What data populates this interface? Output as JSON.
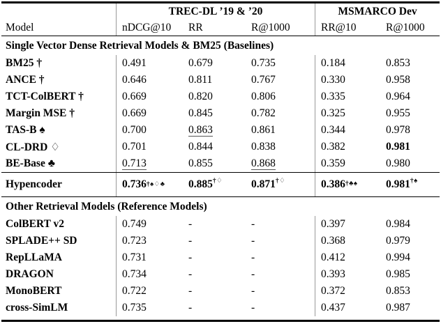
{
  "table": {
    "header": {
      "model": "Model",
      "groups": [
        {
          "label": "TREC-DL ’19 & ’20",
          "cols": [
            "nDCG@10",
            "RR",
            "R@1000"
          ]
        },
        {
          "label": "MSMARCO Dev",
          "cols": [
            "RR@10",
            "R@1000"
          ]
        }
      ]
    },
    "sections": [
      {
        "title": "Single Vector Dense Retrieval Models & BM25 (Baselines)",
        "rows": [
          {
            "model": "BM25 †",
            "cells": [
              {
                "t": "0.491"
              },
              {
                "t": "0.679"
              },
              {
                "t": "0.735"
              },
              {
                "t": "0.184"
              },
              {
                "t": "0.853"
              }
            ]
          },
          {
            "model": "ANCE †",
            "cells": [
              {
                "t": "0.646"
              },
              {
                "t": "0.811"
              },
              {
                "t": "0.767"
              },
              {
                "t": "0.330"
              },
              {
                "t": "0.958"
              }
            ]
          },
          {
            "model": "TCT-ColBERT †",
            "cells": [
              {
                "t": "0.669"
              },
              {
                "t": "0.820"
              },
              {
                "t": "0.806"
              },
              {
                "t": "0.335"
              },
              {
                "t": "0.964"
              }
            ]
          },
          {
            "model": "Margin MSE †",
            "cells": [
              {
                "t": "0.669"
              },
              {
                "t": "0.845"
              },
              {
                "t": "0.782"
              },
              {
                "t": "0.325"
              },
              {
                "t": "0.955"
              }
            ]
          },
          {
            "model": "TAS-B ♠",
            "cells": [
              {
                "t": "0.700"
              },
              {
                "t": "0.863",
                "ul": true
              },
              {
                "t": "0.861"
              },
              {
                "t": "0.344"
              },
              {
                "t": "0.978"
              }
            ]
          },
          {
            "model": "CL-DRD ♢",
            "cells": [
              {
                "t": "0.701"
              },
              {
                "t": "0.844"
              },
              {
                "t": "0.838"
              },
              {
                "t": "0.382"
              },
              {
                "t": "0.981",
                "bold": true
              }
            ]
          },
          {
            "model": "BE-Base ♣",
            "cells": [
              {
                "t": "0.713",
                "ul": true
              },
              {
                "t": "0.855"
              },
              {
                "t": "0.868",
                "ul": true
              },
              {
                "t": "0.359"
              },
              {
                "t": "0.980"
              }
            ]
          }
        ]
      },
      {
        "title": null,
        "highlight": true,
        "rows": [
          {
            "model": "Hypencoder",
            "cells": [
              {
                "t": "0.736",
                "sup": "†♠♢♣",
                "bold": true
              },
              {
                "t": "0.885",
                "sup": "†♢",
                "bold": true
              },
              {
                "t": "0.871",
                "sup": "†♢",
                "bold": true
              },
              {
                "t": "0.386",
                "sup": "†♣♠",
                "bold": true
              },
              {
                "t": "0.981",
                "sup": "†♠",
                "bold": true
              }
            ]
          }
        ]
      },
      {
        "title": "Other Retrieval Models (Reference Models)",
        "rows": [
          {
            "model": "ColBERT v2",
            "cells": [
              {
                "t": "0.749"
              },
              {
                "t": "-"
              },
              {
                "t": "-"
              },
              {
                "t": "0.397"
              },
              {
                "t": "0.984"
              }
            ]
          },
          {
            "model": "SPLADE++ SD",
            "cells": [
              {
                "t": "0.723"
              },
              {
                "t": "-"
              },
              {
                "t": "-"
              },
              {
                "t": "0.368"
              },
              {
                "t": "0.979"
              }
            ]
          },
          {
            "model": "RepLLaMA",
            "cells": [
              {
                "t": "0.731"
              },
              {
                "t": "-"
              },
              {
                "t": "-"
              },
              {
                "t": "0.412"
              },
              {
                "t": "0.994"
              }
            ]
          },
          {
            "model": "DRAGON",
            "cells": [
              {
                "t": "0.734"
              },
              {
                "t": "-"
              },
              {
                "t": "-"
              },
              {
                "t": "0.393"
              },
              {
                "t": "0.985"
              }
            ]
          },
          {
            "model": "MonoBERT",
            "cells": [
              {
                "t": "0.722"
              },
              {
                "t": "-"
              },
              {
                "t": "-"
              },
              {
                "t": "0.372"
              },
              {
                "t": "0.853"
              }
            ]
          },
          {
            "model": "cross-SimLM",
            "cells": [
              {
                "t": "0.735"
              },
              {
                "t": "-"
              },
              {
                "t": "-"
              },
              {
                "t": "0.437"
              },
              {
                "t": "0.987"
              }
            ]
          }
        ]
      }
    ],
    "colors": {
      "rule": "#000000",
      "column_separator": "#999999"
    }
  }
}
